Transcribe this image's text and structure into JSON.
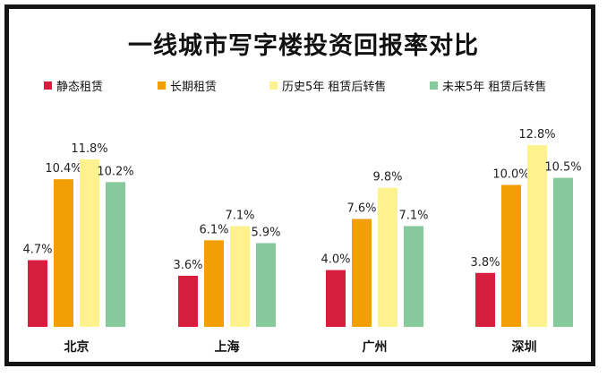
{
  "page": {
    "title": "一线城市写字楼投资回报率对比"
  },
  "chart_data": {
    "type": "bar",
    "title": "一线城市写字楼投资回报率对比",
    "categories": [
      "北京",
      "上海",
      "广州",
      "深圳"
    ],
    "unit": "%",
    "ylim": [
      0,
      14
    ],
    "legend_position": "top",
    "grid": false,
    "series": [
      {
        "name": "静态租赁",
        "color": "#d81e3f",
        "values": [
          4.7,
          3.6,
          4.0,
          3.8
        ]
      },
      {
        "name": "长期租赁",
        "color": "#f29f05",
        "values": [
          10.4,
          6.1,
          7.6,
          10.0
        ]
      },
      {
        "name": "历史5年 租赁后转售",
        "color": "#fdf28e",
        "values": [
          11.8,
          7.1,
          9.8,
          12.8
        ]
      },
      {
        "name": "未来5年 租赁后转售",
        "color": "#86c99a",
        "values": [
          10.2,
          5.9,
          7.1,
          10.5
        ]
      }
    ],
    "data_labels": [
      [
        "4.7%",
        "10.4%",
        "11.8%",
        "10.2%"
      ],
      [
        "3.6%",
        "6.1%",
        "7.1%",
        "5.9%"
      ],
      [
        "4.0%",
        "7.6%",
        "9.8%",
        "7.1%"
      ],
      [
        "3.8%",
        "10.0%",
        "12.8%",
        "10.5%"
      ]
    ]
  }
}
